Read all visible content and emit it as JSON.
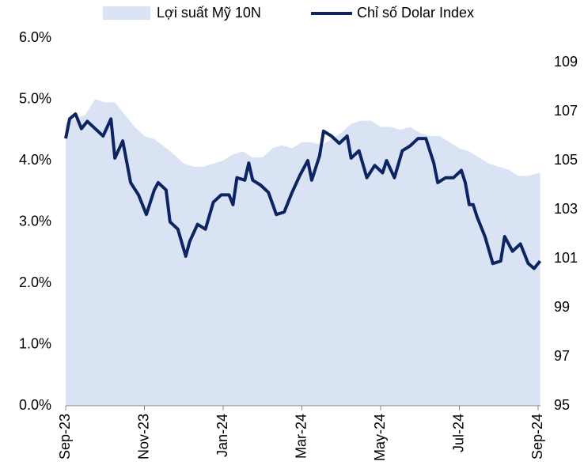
{
  "chart_data": {
    "type": "area-line",
    "xlim": [
      0,
      12.06
    ],
    "xticks": [
      {
        "value": 0,
        "label": "Sep-23"
      },
      {
        "value": 2,
        "label": "Nov-23"
      },
      {
        "value": 4,
        "label": "Jan-24"
      },
      {
        "value": 6,
        "label": "Mar-24"
      },
      {
        "value": 8,
        "label": "May-24"
      },
      {
        "value": 10,
        "label": "Jul-24"
      },
      {
        "value": 12,
        "label": "Sep-24"
      }
    ],
    "ylim": [
      0,
      6
    ],
    "yticks": [
      {
        "value": 0,
        "label": "0.0%"
      },
      {
        "value": 1,
        "label": "1.0%"
      },
      {
        "value": 2,
        "label": "2.0%"
      },
      {
        "value": 3,
        "label": "3.0%"
      },
      {
        "value": 4,
        "label": "4.0%"
      },
      {
        "value": 5,
        "label": "5.0%"
      },
      {
        "value": 6,
        "label": "6.0%"
      }
    ],
    "y2lim": [
      95,
      110
    ],
    "y2ticks": [
      95,
      97,
      99,
      101,
      103,
      105,
      107,
      109
    ],
    "series": [
      {
        "name": "Lợi suất Mỹ 10N",
        "type": "area",
        "color": "#dae3f3",
        "x": [
          0,
          0.5,
          0.75,
          1.0,
          1.25,
          1.5,
          1.75,
          2.0,
          2.25,
          2.5,
          2.75,
          3.0,
          3.25,
          3.5,
          3.75,
          4.0,
          4.25,
          4.5,
          4.75,
          5.0,
          5.25,
          5.5,
          5.75,
          6.0,
          6.25,
          6.5,
          6.75,
          7.0,
          7.25,
          7.5,
          7.75,
          8.0,
          8.25,
          8.5,
          8.75,
          9.0,
          9.25,
          9.5,
          9.75,
          10.0,
          10.25,
          10.5,
          10.75,
          11.0,
          11.25,
          11.5,
          11.75,
          12.05
        ],
        "values": [
          4.62,
          4.75,
          5.0,
          4.95,
          4.95,
          4.75,
          4.55,
          4.4,
          4.35,
          4.23,
          4.1,
          3.95,
          3.9,
          3.9,
          3.95,
          4.0,
          4.1,
          4.15,
          4.05,
          4.05,
          4.2,
          4.25,
          4.2,
          4.3,
          4.3,
          4.25,
          4.35,
          4.45,
          4.6,
          4.65,
          4.65,
          4.55,
          4.55,
          4.5,
          4.55,
          4.45,
          4.4,
          4.4,
          4.3,
          4.2,
          4.15,
          4.05,
          3.95,
          3.9,
          3.85,
          3.75,
          3.75,
          3.8
        ]
      },
      {
        "name": "Chỉ số Dolar Index",
        "type": "line",
        "color": "#0c2461",
        "axis": "y2",
        "x": [
          0,
          0.1,
          0.25,
          0.4,
          0.55,
          0.75,
          0.95,
          1.15,
          1.25,
          1.45,
          1.65,
          1.85,
          2.05,
          2.25,
          2.35,
          2.55,
          2.65,
          2.85,
          3.05,
          3.15,
          3.35,
          3.55,
          3.75,
          3.95,
          4.15,
          4.25,
          4.35,
          4.55,
          4.65,
          4.75,
          4.95,
          5.15,
          5.35,
          5.55,
          5.75,
          5.95,
          6.15,
          6.25,
          6.45,
          6.55,
          6.75,
          6.95,
          7.15,
          7.25,
          7.45,
          7.65,
          7.85,
          8.05,
          8.15,
          8.35,
          8.55,
          8.75,
          8.95,
          9.15,
          9.35,
          9.45,
          9.65,
          9.85,
          10.05,
          10.15,
          10.25,
          10.35,
          10.45,
          10.65,
          10.85,
          11.05,
          11.15,
          11.35,
          11.55,
          11.75,
          11.9,
          12.05
        ],
        "values": [
          105.9,
          106.7,
          106.9,
          106.3,
          106.6,
          106.3,
          106.0,
          106.7,
          105.1,
          105.8,
          104.1,
          103.6,
          102.8,
          103.8,
          104.1,
          103.8,
          102.5,
          102.2,
          101.1,
          101.7,
          102.4,
          102.2,
          103.3,
          103.6,
          103.6,
          103.2,
          104.3,
          104.2,
          104.9,
          104.2,
          104.0,
          103.7,
          102.8,
          102.9,
          103.7,
          104.4,
          105.0,
          104.2,
          105.2,
          106.2,
          106.0,
          105.7,
          106.0,
          105.1,
          105.4,
          104.3,
          104.8,
          104.5,
          105.0,
          104.3,
          105.4,
          105.6,
          105.9,
          105.9,
          104.9,
          104.1,
          104.3,
          104.3,
          104.6,
          104.1,
          103.2,
          103.2,
          102.7,
          101.9,
          100.8,
          100.9,
          101.9,
          101.3,
          101.6,
          100.8,
          100.6,
          100.9
        ]
      }
    ]
  }
}
